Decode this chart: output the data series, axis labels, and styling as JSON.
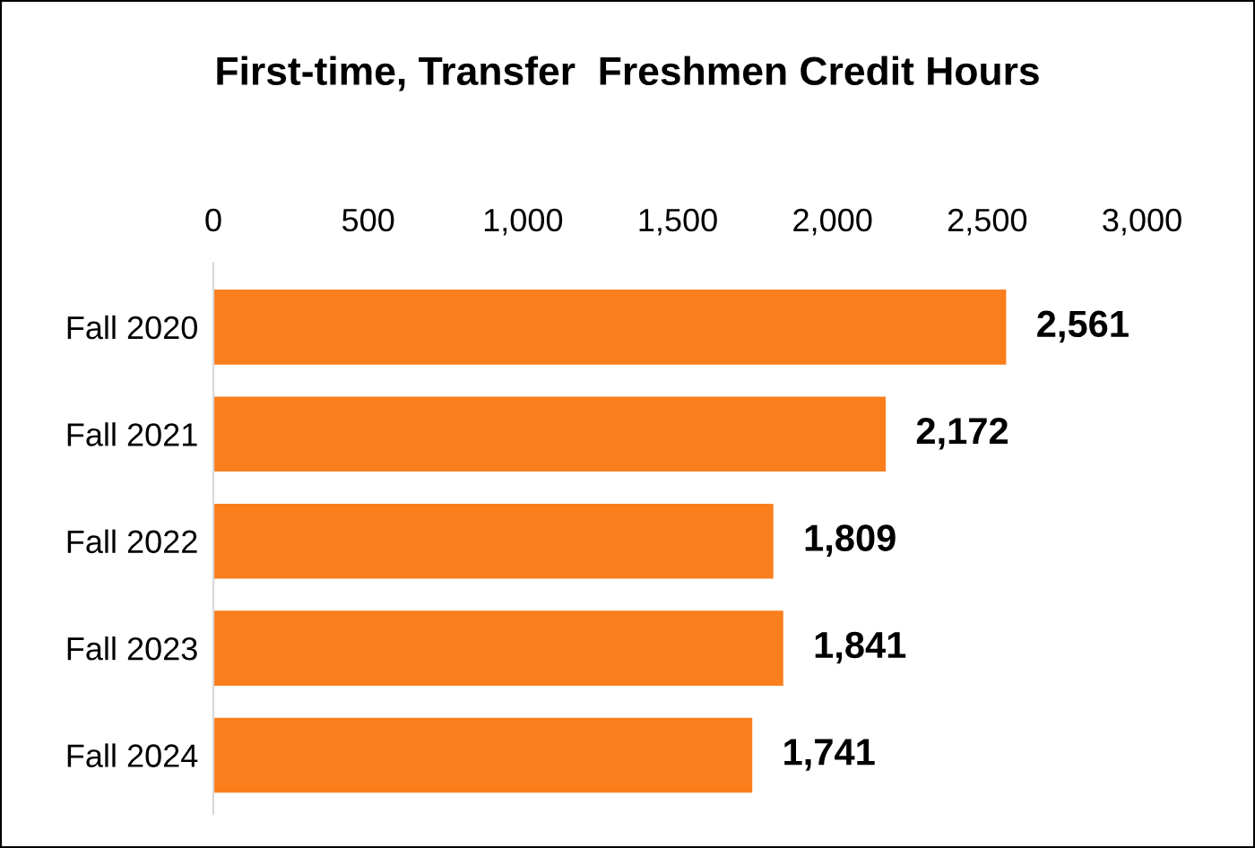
{
  "chart_data": {
    "type": "bar",
    "orientation": "horizontal",
    "title": "First-time, Transfer  Freshmen Credit Hours",
    "categories": [
      "Fall 2020",
      "Fall 2021",
      "Fall 2022",
      "Fall 2023",
      "Fall 2024"
    ],
    "values": [
      2561,
      2172,
      1809,
      1841,
      1741
    ],
    "color": "#fb7e1d",
    "value_labels": [
      "2,561",
      "2,172",
      "1,809",
      "1,841",
      "1,741"
    ],
    "xlim": [
      0,
      3000
    ],
    "xticks": [
      0,
      500,
      {
        "value": 1000,
        "label": "1,000"
      },
      {
        "value": 1500,
        "label": "1,500"
      },
      {
        "value": 2000,
        "label": "2,000"
      },
      {
        "value": 2500,
        "label": "2,500"
      },
      {
        "value": 3000,
        "label": "3,000"
      }
    ],
    "grid": false,
    "legend": false
  }
}
